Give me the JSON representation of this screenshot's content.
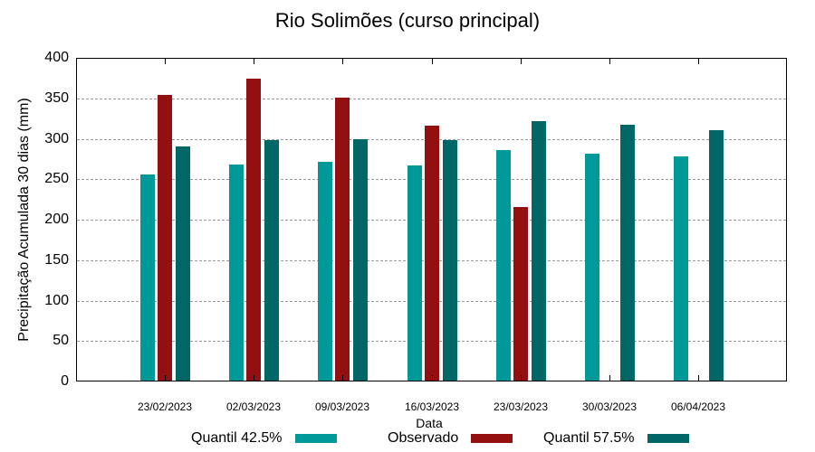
{
  "chart_data": {
    "type": "bar",
    "title": "Rio Solimões (curso principal)",
    "xlabel": "Data",
    "ylabel": "Precipitação Acumulada 30 dias (mm)",
    "ylim": [
      0,
      400
    ],
    "yticks": [
      0,
      50,
      100,
      150,
      200,
      250,
      300,
      350,
      400
    ],
    "grid": true,
    "legend_position": "bottom",
    "categories": [
      "23/02/2023",
      "02/03/2023",
      "09/03/2023",
      "16/03/2023",
      "23/03/2023",
      "30/03/2023",
      "06/04/2023"
    ],
    "series": [
      {
        "name": "Quantil 42.5%",
        "color": "#009999",
        "values": [
          255,
          267,
          270,
          266,
          285,
          281,
          277
        ]
      },
      {
        "name": "Observado",
        "color": "#941010",
        "values": [
          353,
          373,
          350,
          315,
          215,
          null,
          null
        ]
      },
      {
        "name": "Quantil 57.5%",
        "color": "#006666",
        "values": [
          289,
          297,
          298,
          297,
          321,
          316,
          309
        ]
      }
    ]
  }
}
